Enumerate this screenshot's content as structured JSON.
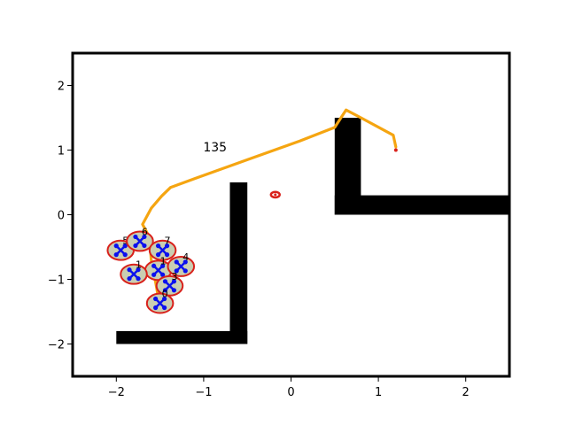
{
  "chart_data": {
    "type": "scatter",
    "title": "",
    "xlabel": "",
    "ylabel": "",
    "xlim": [
      -2.5,
      2.5
    ],
    "ylim": [
      -2.5,
      2.5
    ],
    "xticks": [
      -2,
      -1,
      0,
      1,
      2
    ],
    "yticks": [
      -2,
      -1,
      0,
      1,
      2
    ],
    "xtick_labels": [
      "−2",
      "−1",
      "0",
      "1",
      "2"
    ],
    "ytick_labels": [
      "−2",
      "−1",
      "0",
      "1",
      "2"
    ],
    "grid": false,
    "annotation": {
      "text": "135",
      "x": -0.87,
      "y": 1.05
    },
    "colors": {
      "path": "#f5a511",
      "obstacle": "#000000",
      "robot_fill": "#c9ceb2",
      "robot_edge": "#d9211b",
      "robot_marker": "#0b10ee",
      "target": "#d9211b"
    },
    "target": {
      "x": -0.18,
      "y": 0.31,
      "r": 0.05
    },
    "goal_point": {
      "x": 1.2,
      "y": 1.0
    },
    "path": [
      [
        -1.5,
        -1.42
      ],
      [
        -1.55,
        -1.05
      ],
      [
        -1.6,
        -0.7
      ],
      [
        -1.62,
        -0.35
      ],
      [
        -1.7,
        -0.15
      ],
      [
        -1.6,
        0.1
      ],
      [
        -1.48,
        0.29
      ],
      [
        -1.38,
        0.42
      ],
      [
        -1.1,
        0.56
      ],
      [
        -0.5,
        0.85
      ],
      [
        0.1,
        1.14
      ],
      [
        0.5,
        1.35
      ],
      [
        0.63,
        1.62
      ],
      [
        0.8,
        1.5
      ],
      [
        1.17,
        1.23
      ],
      [
        1.2,
        1.05
      ]
    ],
    "obstacles": [
      {
        "name": "lower-left-wall-horizontal",
        "x0": -2.0,
        "x1": -0.5,
        "y0": -2.0,
        "y1": -1.8
      },
      {
        "name": "lower-left-wall-vertical",
        "x0": -0.7,
        "x1": -0.5,
        "y0": -2.0,
        "y1": 0.5
      },
      {
        "name": "upper-right-wall-vertical",
        "x0": 0.5,
        "x1": 0.8,
        "y0": 0.0,
        "y1": 1.5
      },
      {
        "name": "upper-right-wall-horizontal",
        "x0": 0.5,
        "x1": 2.5,
        "y0": 0.0,
        "y1": 0.3
      }
    ],
    "robots": [
      {
        "x": -1.95,
        "y": -0.55,
        "label": "5"
      },
      {
        "x": -1.73,
        "y": -0.41,
        "label": "6"
      },
      {
        "x": -1.47,
        "y": -0.55,
        "label": "7"
      },
      {
        "x": -1.52,
        "y": -0.86,
        "label": "1"
      },
      {
        "x": -1.26,
        "y": -0.8,
        "label": "4"
      },
      {
        "x": -1.8,
        "y": -0.92,
        "label": "1"
      },
      {
        "x": -1.39,
        "y": -1.1,
        "label": "3"
      },
      {
        "x": -1.5,
        "y": -1.37,
        "label": "0"
      }
    ],
    "robot_radius": 0.15
  }
}
